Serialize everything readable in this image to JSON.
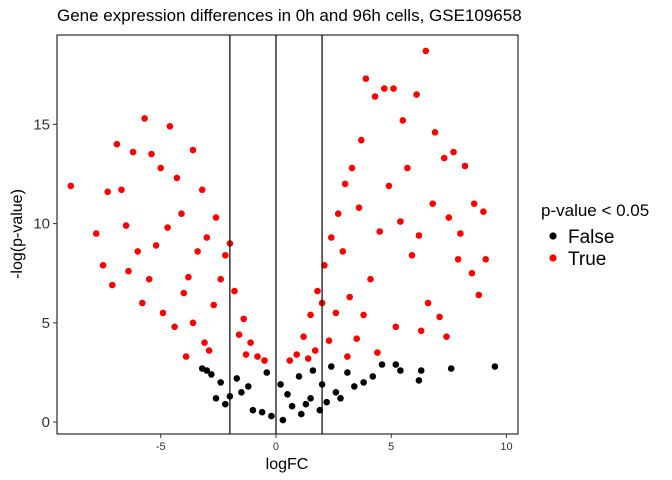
{
  "chart_data": {
    "type": "scatter",
    "title": "Gene expression differences in 0h and 96h cells, GSE109658",
    "xlabel": "logFC",
    "ylabel": "-log(p-value)",
    "xlim": [
      -9.5,
      10.5
    ],
    "ylim": [
      -0.6,
      19.5
    ],
    "x_ticks": [
      -5,
      0,
      5,
      10
    ],
    "x_tick_labels": [
      "-5",
      "0",
      "5",
      "10"
    ],
    "y_ticks": [
      0,
      5,
      10,
      15
    ],
    "y_tick_labels": [
      "0",
      "5",
      "10",
      "15"
    ],
    "grid": false,
    "reference_lines_x": [
      -2,
      0,
      2
    ],
    "significance_threshold_y": 3.0,
    "legend": {
      "title": "p-value < 0.05",
      "position": "right",
      "entries": [
        {
          "label": "False",
          "color": "#000000"
        },
        {
          "label": "True",
          "color": "#ff0000"
        }
      ]
    },
    "series": [
      {
        "name": "False",
        "color": "#000000",
        "points": [
          [
            9.5,
            2.8
          ],
          [
            7.6,
            2.7
          ],
          [
            6.3,
            2.6
          ],
          [
            6.2,
            2.1
          ],
          [
            5.4,
            2.6
          ],
          [
            5.2,
            2.9
          ],
          [
            4.6,
            2.9
          ],
          [
            4.2,
            2.3
          ],
          [
            3.8,
            2.0
          ],
          [
            3.4,
            1.8
          ],
          [
            2.8,
            1.2
          ],
          [
            2.6,
            1.5
          ],
          [
            2.2,
            1.0
          ],
          [
            1.9,
            0.6
          ],
          [
            1.5,
            1.2
          ],
          [
            1.1,
            0.4
          ],
          [
            0.7,
            0.8
          ],
          [
            0.3,
            0.1
          ],
          [
            -0.2,
            0.3
          ],
          [
            -0.6,
            0.5
          ],
          [
            -1.0,
            0.6
          ],
          [
            -1.5,
            1.5
          ],
          [
            -2.0,
            1.3
          ],
          [
            -2.4,
            2.0
          ],
          [
            -2.8,
            2.4
          ],
          [
            -3.0,
            2.6
          ],
          [
            -3.2,
            2.7
          ],
          [
            -2.2,
            0.9
          ],
          [
            -1.7,
            2.2
          ],
          [
            1.0,
            2.3
          ],
          [
            1.6,
            2.6
          ],
          [
            0.2,
            1.9
          ],
          [
            -0.4,
            2.5
          ],
          [
            2.4,
            2.8
          ],
          [
            3.1,
            2.5
          ],
          [
            -2.6,
            1.2
          ],
          [
            -1.2,
            1.8
          ],
          [
            0.5,
            1.4
          ],
          [
            1.3,
            0.9
          ],
          [
            2.0,
            1.9
          ]
        ]
      },
      {
        "name": "True",
        "color": "#ff0000",
        "points": [
          [
            -8.9,
            11.9
          ],
          [
            -7.8,
            9.5
          ],
          [
            -7.5,
            7.9
          ],
          [
            -7.3,
            11.6
          ],
          [
            -6.9,
            14.0
          ],
          [
            -6.5,
            9.9
          ],
          [
            -6.7,
            11.7
          ],
          [
            -6.2,
            13.6
          ],
          [
            -5.7,
            15.3
          ],
          [
            -5.4,
            13.5
          ],
          [
            -5.0,
            12.8
          ],
          [
            -4.6,
            14.9
          ],
          [
            -4.3,
            12.3
          ],
          [
            -3.6,
            13.7
          ],
          [
            -3.2,
            11.7
          ],
          [
            -7.1,
            6.9
          ],
          [
            -6.4,
            7.6
          ],
          [
            -5.8,
            6.0
          ],
          [
            -5.2,
            8.9
          ],
          [
            -4.7,
            9.8
          ],
          [
            -4.1,
            10.5
          ],
          [
            -3.8,
            7.3
          ],
          [
            -3.4,
            8.6
          ],
          [
            -3.0,
            9.3
          ],
          [
            -2.6,
            10.3
          ],
          [
            -2.2,
            8.4
          ],
          [
            -1.8,
            6.6
          ],
          [
            -1.4,
            5.2
          ],
          [
            -1.1,
            4.0
          ],
          [
            -0.8,
            3.3
          ],
          [
            -0.5,
            3.1
          ],
          [
            -4.9,
            5.5
          ],
          [
            -4.4,
            4.8
          ],
          [
            -4.0,
            6.5
          ],
          [
            -3.6,
            5.0
          ],
          [
            -3.1,
            4.0
          ],
          [
            -2.7,
            5.9
          ],
          [
            -2.4,
            7.2
          ],
          [
            -2.0,
            9.0
          ],
          [
            -1.6,
            4.4
          ],
          [
            -5.5,
            7.2
          ],
          [
            -6.0,
            8.6
          ],
          [
            -3.9,
            3.3
          ],
          [
            -2.9,
            3.6
          ],
          [
            -1.3,
            3.4
          ],
          [
            0.6,
            3.1
          ],
          [
            0.9,
            3.4
          ],
          [
            1.2,
            4.3
          ],
          [
            1.5,
            5.4
          ],
          [
            1.8,
            6.6
          ],
          [
            2.1,
            7.9
          ],
          [
            2.4,
            9.3
          ],
          [
            2.7,
            10.5
          ],
          [
            3.0,
            12.0
          ],
          [
            3.3,
            12.8
          ],
          [
            3.7,
            14.2
          ],
          [
            3.9,
            17.3
          ],
          [
            4.3,
            16.4
          ],
          [
            4.7,
            16.8
          ],
          [
            5.1,
            16.8
          ],
          [
            5.5,
            15.2
          ],
          [
            6.1,
            16.5
          ],
          [
            6.5,
            18.7
          ],
          [
            6.9,
            14.6
          ],
          [
            7.3,
            13.3
          ],
          [
            7.7,
            13.6
          ],
          [
            8.2,
            12.9
          ],
          [
            8.6,
            11.0
          ],
          [
            9.0,
            10.6
          ],
          [
            9.1,
            8.2
          ],
          [
            8.8,
            6.4
          ],
          [
            8.5,
            7.5
          ],
          [
            8.0,
            9.5
          ],
          [
            7.5,
            10.3
          ],
          [
            7.1,
            5.3
          ],
          [
            6.6,
            6.0
          ],
          [
            6.3,
            4.6
          ],
          [
            5.9,
            8.4
          ],
          [
            5.4,
            10.1
          ],
          [
            4.9,
            11.9
          ],
          [
            4.5,
            9.6
          ],
          [
            4.1,
            7.2
          ],
          [
            3.8,
            5.4
          ],
          [
            3.5,
            4.2
          ],
          [
            3.2,
            6.3
          ],
          [
            2.9,
            8.6
          ],
          [
            2.6,
            5.5
          ],
          [
            2.3,
            4.1
          ],
          [
            2.0,
            6.0
          ],
          [
            1.7,
            3.6
          ],
          [
            1.4,
            3.2
          ],
          [
            5.2,
            4.8
          ],
          [
            5.7,
            12.8
          ],
          [
            6.8,
            11.0
          ],
          [
            7.9,
            8.2
          ],
          [
            4.4,
            3.5
          ],
          [
            3.6,
            10.8
          ],
          [
            3.1,
            3.3
          ],
          [
            6.2,
            9.4
          ],
          [
            7.4,
            4.3
          ]
        ]
      }
    ]
  }
}
